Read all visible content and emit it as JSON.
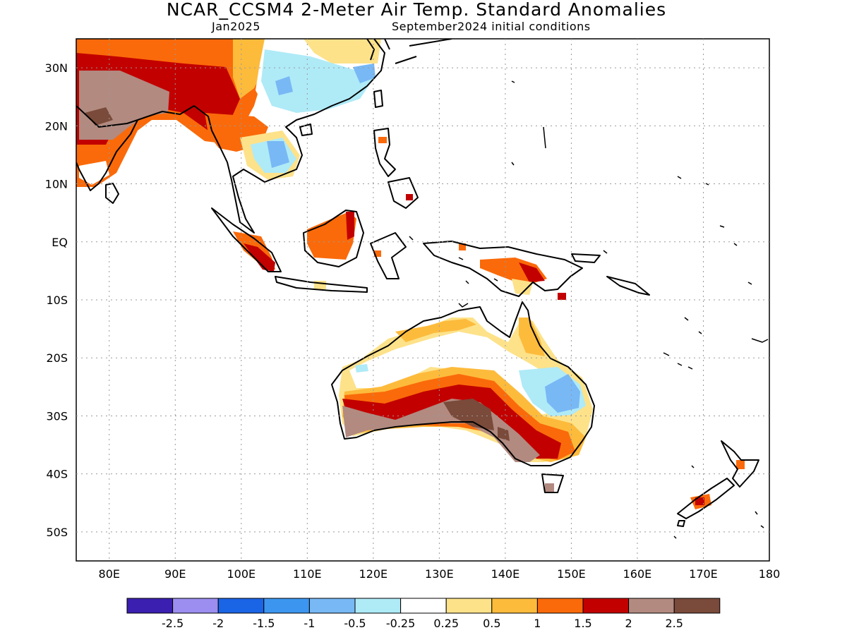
{
  "title": "NCAR_CCSM4 2-Meter Air Temp. Standard Anomalies",
  "subtitle_left": "Jan2025",
  "subtitle_right": "September2024 initial conditions",
  "lat_labels": [
    {
      "lat": 30,
      "text": "30N"
    },
    {
      "lat": 20,
      "text": "20N"
    },
    {
      "lat": 10,
      "text": "10N"
    },
    {
      "lat": 0,
      "text": "EQ"
    },
    {
      "lat": -10,
      "text": "10S"
    },
    {
      "lat": -20,
      "text": "20S"
    },
    {
      "lat": -30,
      "text": "30S"
    },
    {
      "lat": -40,
      "text": "40S"
    },
    {
      "lat": -50,
      "text": "50S"
    }
  ],
  "lon_labels": [
    {
      "lon": 80,
      "text": "80E"
    },
    {
      "lon": 90,
      "text": "90E"
    },
    {
      "lon": 100,
      "text": "100E"
    },
    {
      "lon": 110,
      "text": "110E"
    },
    {
      "lon": 120,
      "text": "120E"
    },
    {
      "lon": 130,
      "text": "130E"
    },
    {
      "lon": 140,
      "text": "140E"
    },
    {
      "lon": 150,
      "text": "150E"
    },
    {
      "lon": 160,
      "text": "160E"
    },
    {
      "lon": 170,
      "text": "170E"
    },
    {
      "lon": 180,
      "text": "180"
    }
  ],
  "map_extent": {
    "lon": [
      75,
      180
    ],
    "lat": [
      -55,
      35
    ]
  },
  "colorbar": {
    "colors": [
      "#3a1fb0",
      "#9b8ef0",
      "#1a64e6",
      "#3c96f0",
      "#78b8f5",
      "#afeaf7",
      "#ffffff",
      "#fde28a",
      "#fdbb3c",
      "#fa6a0a",
      "#c20000",
      "#b28a80",
      "#7a4a3a"
    ],
    "labels": [
      "-2.5",
      "-2",
      "-1.5",
      "-1",
      "-0.5",
      "-0.25",
      "0.25",
      "0.5",
      "1",
      "1.5",
      "2",
      "2.5"
    ]
  }
}
